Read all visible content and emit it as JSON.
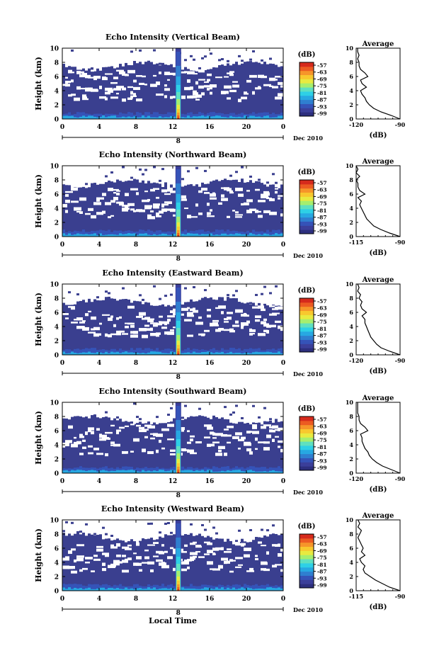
{
  "colors": {
    "background_low": "#3a3f8f",
    "colorscale": [
      "#2d2f7e",
      "#3b3f9a",
      "#3553b8",
      "#2f7fd0",
      "#27a8e2",
      "#2ed0e6",
      "#5fe0c0",
      "#a6ee6e",
      "#e8ea40",
      "#f8c82e",
      "#f6952a",
      "#ec5b22",
      "#d62a1c"
    ]
  },
  "chart_data": [
    {
      "type": "heatmap",
      "title": "Echo Intensity (Vertical Beam)",
      "ylabel": "Height (km)",
      "yticks": [
        "0",
        "2",
        "4",
        "6",
        "8",
        "10"
      ],
      "xticks": [
        "0",
        "4",
        "8",
        "12",
        "16",
        "20",
        "0"
      ],
      "date_tick": "8",
      "date_label": "Dec 2010",
      "ylim": [
        0,
        10
      ],
      "xlim": [
        0,
        24
      ],
      "colorbar": {
        "unit": "(dB)",
        "ticks": [
          "-57",
          "-63",
          "-69",
          "-75",
          "-81",
          "-87",
          "-93",
          "-99"
        ]
      },
      "average_profile": {
        "title": "Average",
        "xlabel": "(dB)",
        "xticks": [
          "-120",
          "-90"
        ],
        "yticks": [
          "0",
          "2",
          "4",
          "6",
          "8",
          "10"
        ],
        "xlim": [
          -120,
          -90
        ],
        "height": [
          0,
          0.5,
          1,
          1.5,
          2,
          2.5,
          3,
          3.5,
          4,
          4.5,
          5,
          5.5,
          6,
          6.5,
          7,
          7.5,
          8,
          8.5,
          9,
          9.5,
          10
        ],
        "value": [
          -90,
          -96,
          -103,
          -108,
          -111,
          -113,
          -114,
          -116,
          -117,
          -113,
          -116,
          -117,
          -112,
          -114,
          -117,
          -118,
          -118,
          -119,
          -118,
          -119,
          -119
        ]
      }
    },
    {
      "type": "heatmap",
      "title": "Echo Intensity (Northward Beam)",
      "ylabel": "Height (km)",
      "yticks": [
        "0",
        "2",
        "4",
        "6",
        "8",
        "10"
      ],
      "xticks": [
        "0",
        "4",
        "8",
        "12",
        "16",
        "20",
        "0"
      ],
      "date_tick": "8",
      "date_label": "Dec 2010",
      "ylim": [
        0,
        10
      ],
      "xlim": [
        0,
        24
      ],
      "colorbar": {
        "unit": "(dB)",
        "ticks": [
          "-57",
          "-63",
          "-69",
          "-75",
          "-81",
          "-87",
          "-93",
          "-99"
        ]
      },
      "average_profile": {
        "title": "Average",
        "xlabel": "(dB)",
        "xticks": [
          "-115",
          "-90"
        ],
        "yticks": [
          "0",
          "2",
          "4",
          "6",
          "8",
          "10"
        ],
        "xlim": [
          -115,
          -90
        ],
        "height": [
          0,
          0.5,
          1,
          1.5,
          2,
          2.5,
          3,
          3.5,
          4,
          4.5,
          5,
          5.5,
          6,
          6.5,
          7,
          7.5,
          8,
          8.5,
          9,
          9.5,
          10
        ],
        "value": [
          -90,
          -96,
          -101,
          -105,
          -107,
          -109,
          -110,
          -111,
          -112,
          -113,
          -112,
          -114,
          -110,
          -113,
          -114,
          -114,
          -115,
          -113,
          -115,
          -114,
          -115
        ]
      }
    },
    {
      "type": "heatmap",
      "title": "Echo Intensity (Eastward Beam)",
      "ylabel": "Height (km)",
      "yticks": [
        "0",
        "2",
        "4",
        "6",
        "8",
        "10"
      ],
      "xticks": [
        "0",
        "4",
        "8",
        "12",
        "16",
        "20",
        "0"
      ],
      "date_tick": "8",
      "date_label": "Dec 2010",
      "ylim": [
        0,
        10
      ],
      "xlim": [
        0,
        24
      ],
      "colorbar": {
        "unit": "(dB)",
        "ticks": [
          "-57",
          "-63",
          "-69",
          "-75",
          "-81",
          "-87",
          "-93",
          "-99"
        ]
      },
      "average_profile": {
        "title": "Average",
        "xlabel": "(dB)",
        "xticks": [
          "-120",
          "-90"
        ],
        "yticks": [
          "0",
          "2",
          "4",
          "6",
          "8",
          "10"
        ],
        "xlim": [
          -120,
          -90
        ],
        "height": [
          0,
          0.5,
          1,
          1.5,
          2,
          2.5,
          3,
          3.5,
          4,
          4.5,
          5,
          5.5,
          6,
          6.5,
          7,
          7.5,
          8,
          8.5,
          9,
          9.5,
          10
        ],
        "value": [
          -90,
          -97,
          -103,
          -106,
          -108,
          -110,
          -111,
          -112,
          -113,
          -114,
          -114,
          -116,
          -113,
          -116,
          -117,
          -116,
          -118,
          -117,
          -119,
          -118,
          -119
        ]
      }
    },
    {
      "type": "heatmap",
      "title": "Echo Intensity (Southward Beam)",
      "ylabel": "Height (km)",
      "yticks": [
        "0",
        "2",
        "4",
        "6",
        "8",
        "10"
      ],
      "xticks": [
        "0",
        "4",
        "8",
        "12",
        "16",
        "20",
        "0"
      ],
      "date_tick": "8",
      "date_label": "Dec 2010",
      "ylim": [
        0,
        10
      ],
      "xlim": [
        0,
        24
      ],
      "colorbar": {
        "unit": "(dB)",
        "ticks": [
          "-57",
          "-63",
          "-69",
          "-75",
          "-81",
          "-87",
          "-93",
          "-99"
        ]
      },
      "average_profile": {
        "title": "Average",
        "xlabel": "(dB)",
        "xticks": [
          "-120",
          "-90"
        ],
        "yticks": [
          "0",
          "2",
          "4",
          "6",
          "8",
          "10"
        ],
        "xlim": [
          -120,
          -90
        ],
        "height": [
          0,
          0.5,
          1,
          1.5,
          2,
          2.5,
          3,
          3.5,
          4,
          4.5,
          5,
          5.5,
          6,
          6.5,
          7,
          7.5,
          8,
          8.5,
          9,
          9.5,
          10
        ],
        "value": [
          -90,
          -96,
          -102,
          -106,
          -109,
          -111,
          -112,
          -114,
          -115,
          -116,
          -116,
          -117,
          -112,
          -114,
          -117,
          -118,
          -118,
          -119,
          -119,
          -119,
          -119
        ]
      }
    },
    {
      "type": "heatmap",
      "title": "Echo Intensity (Westward Beam)",
      "ylabel": "Height (km)",
      "yticks": [
        "0",
        "2",
        "4",
        "6",
        "8",
        "10"
      ],
      "xticks": [
        "0",
        "4",
        "8",
        "12",
        "16",
        "20",
        "0"
      ],
      "date_tick": "8",
      "date_label": "Dec 2010",
      "ylim": [
        0,
        10
      ],
      "xlim": [
        0,
        24
      ],
      "xlabel": "Local Time",
      "colorbar": {
        "unit": "(dB)",
        "ticks": [
          "-57",
          "-63",
          "-69",
          "-75",
          "-81",
          "-87",
          "-93",
          "-99"
        ]
      },
      "average_profile": {
        "title": "Average",
        "xlabel": "(dB)",
        "xticks": [
          "-115",
          "-90"
        ],
        "yticks": [
          "0",
          "2",
          "4",
          "6",
          "8",
          "10"
        ],
        "xlim": [
          -115,
          -90
        ],
        "height": [
          0,
          0.5,
          1,
          1.5,
          2,
          2.5,
          3,
          3.5,
          4,
          4.5,
          5,
          5.5,
          6,
          6.5,
          7,
          7.5,
          8,
          8.5,
          9,
          9.5,
          10
        ],
        "value": [
          -90,
          -96,
          -100,
          -104,
          -107,
          -110,
          -111,
          -110,
          -112,
          -113,
          -110,
          -112,
          -111,
          -112,
          -113,
          -114,
          -113,
          -112,
          -114,
          -113,
          -114
        ]
      }
    }
  ]
}
